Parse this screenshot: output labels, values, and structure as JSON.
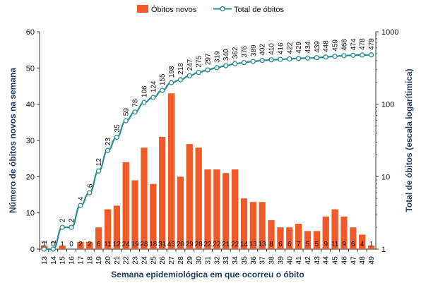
{
  "chart_data": {
    "type": "bar",
    "xlabel": "Semana epidemiológica em que ocorreu o óbito",
    "ylabel_left": "Número de óbitos novos na semana",
    "ylabel_right": "Total de óbitos (escala logarítimica)",
    "x": [
      "13",
      "14",
      "15",
      "16",
      "17",
      "18",
      "19",
      "20",
      "21",
      "22",
      "23",
      "24",
      "25",
      "26",
      "27",
      "28",
      "29",
      "30",
      "31",
      "32",
      "33",
      "34",
      "35",
      "36",
      "37",
      "38",
      "39",
      "40",
      "41",
      "42",
      "43",
      "44",
      "45",
      "46",
      "47",
      "48",
      "49"
    ],
    "ylim_left": [
      0,
      60
    ],
    "yticks_left": [
      "0",
      "10",
      "20",
      "30",
      "40",
      "50",
      "60"
    ],
    "ylim_right": [
      1,
      1000
    ],
    "yticks_right": [
      "1",
      "10",
      "100",
      "1000"
    ],
    "right_scale": "log",
    "grid": false,
    "legend_position": "top",
    "series": [
      {
        "name": "Óbitos novos",
        "type": "bar",
        "color": "#f05a28",
        "values": [
          1,
          0,
          1,
          0,
          2,
          2,
          6,
          11,
          12,
          24,
          19,
          28,
          18,
          31,
          43,
          20,
          29,
          28,
          22,
          22,
          21,
          22,
          14,
          13,
          13,
          8,
          6,
          6,
          7,
          5,
          5,
          9,
          11,
          9,
          6,
          4,
          1
        ],
        "labels": [
          "1",
          "0",
          "1",
          "0",
          "2",
          "2",
          "6",
          "11",
          "12",
          "24",
          "19",
          "28",
          "18",
          "31",
          "43",
          "20",
          "29",
          "28",
          "22",
          "22",
          "21",
          "22",
          "14",
          "13",
          "13",
          "8",
          "6",
          "6",
          "7",
          "5",
          "5",
          "9",
          "11",
          "9",
          "6",
          "4",
          "1"
        ]
      },
      {
        "name": "Total de óbitos",
        "type": "line",
        "axis": "right",
        "color": "#2a8c96",
        "values": [
          1,
          1,
          2,
          2,
          4,
          6,
          12,
          23,
          35,
          59,
          78,
          106,
          124,
          155,
          198,
          218,
          247,
          275,
          297,
          319,
          340,
          362,
          376,
          389,
          402,
          410,
          416,
          422,
          429,
          434,
          439,
          448,
          459,
          468,
          474,
          478,
          479
        ],
        "labels": [
          "1",
          "1",
          "2",
          "2",
          "4",
          "6",
          "12",
          "23",
          "35",
          "59",
          "78",
          "106",
          "124",
          "155",
          "198",
          "218",
          "247",
          "275",
          "297",
          "319",
          "340",
          "362",
          "376",
          "389",
          "402",
          "410",
          "416",
          "422",
          "429",
          "434",
          "439",
          "448",
          "459",
          "468",
          "474",
          "478",
          "479"
        ]
      }
    ]
  }
}
